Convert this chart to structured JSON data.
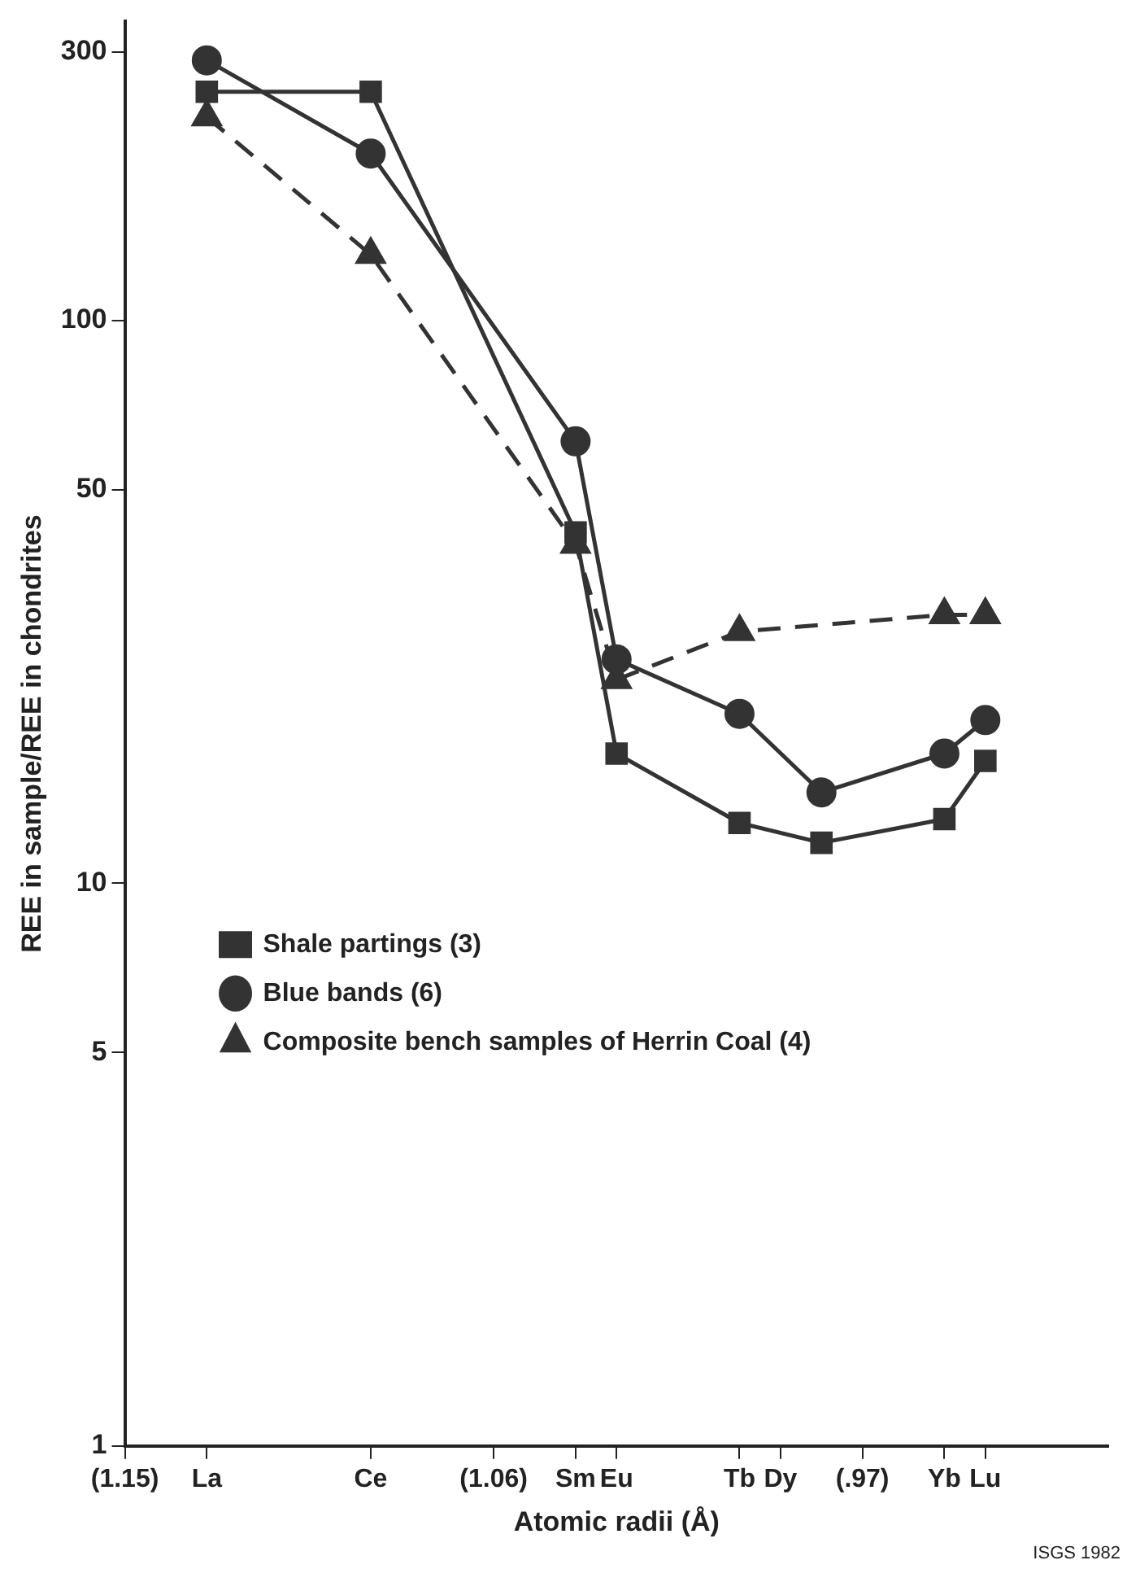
{
  "chart_data": {
    "type": "line",
    "xlabel": "Atomic radii (Å)",
    "ylabel": "REE in sample/REE in chondrites",
    "xlim": [
      1.15,
      0.91
    ],
    "xticks": [
      {
        "value": 1.15,
        "label": "(1.15)"
      },
      {
        "value": 1.13,
        "label": "La"
      },
      {
        "value": 1.09,
        "label": "Ce"
      },
      {
        "value": 1.06,
        "label": "(1.06)"
      },
      {
        "value": 1.04,
        "label": "Sm"
      },
      {
        "value": 1.03,
        "label": "Eu"
      },
      {
        "value": 1.0,
        "label": "Tb"
      },
      {
        "value": 0.99,
        "label": "Dy"
      },
      {
        "value": 0.97,
        "label": "(.97)"
      },
      {
        "value": 0.95,
        "label": "Yb"
      },
      {
        "value": 0.94,
        "label": "Lu"
      }
    ],
    "ylim": [
      1,
      340
    ],
    "yticks": [
      1,
      5,
      10,
      50,
      100,
      300
    ],
    "log": "y",
    "grid": false,
    "legend": "bottom left",
    "series": [
      {
        "name": "Shale partings (3)",
        "color": "#333333",
        "marker": "square",
        "line_style": "solid",
        "x": [
          1.13,
          1.09,
          1.04,
          1.03,
          1.0,
          0.98,
          0.95,
          0.94
        ],
        "values": [
          255,
          255,
          42,
          17,
          12.8,
          11.8,
          13,
          16.5
        ]
      },
      {
        "name": "Blue bands (6)",
        "color": "#333333",
        "marker": "circle",
        "line_style": "solid",
        "x": [
          1.13,
          1.09,
          1.04,
          1.03,
          1.0,
          0.98,
          0.95,
          0.94
        ],
        "values": [
          290,
          198,
          61,
          25,
          20,
          14.5,
          17,
          19.5
        ]
      },
      {
        "name": "Composite bench samples of Herrin Coal (4)",
        "color": "#333333",
        "marker": "triangle",
        "line_style": "dashed",
        "x": [
          1.13,
          1.09,
          1.04,
          1.03,
          1.0,
          0.95,
          0.94
        ],
        "values": [
          230,
          131,
          40,
          23,
          28,
          30,
          30
        ]
      }
    ],
    "annotations": [
      "ISGS 1982"
    ]
  }
}
